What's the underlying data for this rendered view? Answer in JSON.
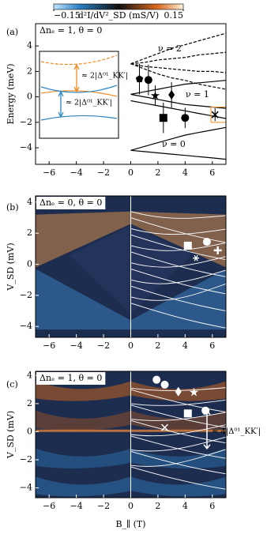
{
  "colorbar": {
    "clim": [
      -0.15,
      0.15
    ],
    "ticks": [
      {
        "value": -0.15,
        "label": "−0.15"
      },
      0.15
    ],
    "label": "d²I/dV²_SD (mS/V)"
  },
  "chart_data": [
    {
      "type": "line",
      "panel_label": "(a)",
      "annotation": "Δnₑ = 1, θ = 0",
      "y_label": "Energy (meV)",
      "xlim": [
        -7,
        7
      ],
      "ylim": [
        -5.3,
        5.75
      ],
      "xticks": [
        {
          "value": -6,
          "label": "−6"
        },
        {
          "value": -4,
          "label": "−4"
        },
        {
          "value": -2,
          "label": "−2"
        },
        0,
        2,
        4,
        6
      ],
      "yticks": [
        {
          "value": -4,
          "label": "−4"
        },
        {
          "value": -2,
          "label": "−2"
        },
        0,
        2,
        4
      ],
      "level_labels": [
        "ν = 2",
        "ν = 1",
        "ν = 0"
      ],
      "inset_labels": [
        "≈ 2|Δ⁰¹_KK′|",
        "≈ 2|Δ⁰¹_KK′|"
      ],
      "x": [
        0,
        1,
        2,
        3,
        4,
        5,
        6,
        7
      ],
      "series": [
        {
          "color": "#000000",
          "dashed": true,
          "values": [
            2.6,
            3.0,
            3.4,
            3.8,
            4.1,
            4.4,
            4.7,
            5.0
          ]
        },
        {
          "color": "#000000",
          "dashed": true,
          "values": [
            2.6,
            2.7,
            2.9,
            3.0,
            3.1,
            3.3,
            3.4,
            3.5
          ]
        },
        {
          "color": "#000000",
          "dashed": true,
          "values": [
            2.6,
            2.4,
            2.3,
            2.2,
            2.1,
            2.0,
            2.0,
            1.9
          ]
        },
        {
          "color": "#000000",
          "dashed": true,
          "values": [
            2.6,
            2.2,
            1.8,
            1.5,
            1.3,
            1.0,
            0.8,
            0.6
          ]
        },
        {
          "color": "#000000",
          "dashed": false,
          "values": [
            0.2,
            0.4,
            0.6,
            0.8,
            1.0,
            1.1,
            1.2,
            1.3
          ]
        },
        {
          "color": "#000000",
          "dashed": false,
          "values": [
            0.2,
            0.0,
            -0.2,
            -0.4,
            -0.6,
            -0.7,
            -0.8,
            -0.9
          ]
        },
        {
          "color": "#000000",
          "dashed": false,
          "values": [
            -0.3,
            -0.5,
            -0.7,
            -0.9,
            -1.1,
            -1.3,
            -1.5,
            -1.7
          ]
        },
        {
          "color": "#000000",
          "dashed": false,
          "values": [
            -4.2,
            -3.9,
            -3.6,
            -3.3,
            -3.0,
            -2.8,
            -2.6,
            -2.4
          ]
        },
        {
          "color": "#000000",
          "dashed": false,
          "values": [
            -4.2,
            -4.3,
            -4.4,
            -4.5,
            -4.6,
            -4.7,
            -4.8,
            -4.9
          ]
        }
      ],
      "points": {
        "color": "#000000",
        "markers": [
          "pentagon",
          "circle",
          "star",
          "diamond",
          "square",
          "circle",
          "cross"
        ],
        "x": [
          0.64,
          1.3,
          1.8,
          3.0,
          2.4,
          4.0,
          6.2
        ],
        "y": [
          1.4,
          1.33,
          0.1,
          0.16,
          -1.65,
          -1.65,
          -1.4
        ],
        "error": [
          1.2,
          1.2,
          0.8,
          1.0,
          1.2,
          0.8,
          0.5
        ]
      }
    },
    {
      "type": "heatmap",
      "panel_label": "(b)",
      "annotation": "Δnₑ = 0, θ = 0",
      "y_label": "V_SD (mV)",
      "xlim": [
        -7,
        7
      ],
      "ylim": [
        -4.7,
        4.4
      ],
      "xticks": [
        {
          "value": -6,
          "label": "−6"
        },
        {
          "value": -4,
          "label": "−4"
        },
        {
          "value": -2,
          "label": "−2"
        },
        0,
        2,
        4,
        6
      ],
      "yticks": [
        {
          "value": -4,
          "label": "−4"
        },
        {
          "value": -2,
          "label": "−2"
        },
        0,
        2,
        4
      ],
      "points": {
        "color": "#ffffff",
        "markers": [
          "square",
          "circle",
          "plus",
          "asterisk"
        ],
        "x": [
          4.2,
          5.6,
          6.4,
          4.8
        ],
        "y": [
          1.2,
          1.45,
          0.9,
          0.4
        ]
      }
    },
    {
      "type": "heatmap",
      "panel_label": "(c)",
      "annotation": "Δnₑ = 1, θ = 0",
      "y_label": "V_SD (mV)",
      "x_label": "B_∥ (T)",
      "gap_label": "≈ 4|Δ⁰¹_KK′|",
      "xlim": [
        -7,
        7
      ],
      "ylim": [
        -4.7,
        4.3
      ],
      "xticks": [
        {
          "value": -6,
          "label": "−6"
        },
        {
          "value": -4,
          "label": "−4"
        },
        {
          "value": -2,
          "label": "−2"
        },
        0,
        2,
        4,
        6
      ],
      "yticks": [
        {
          "value": -4,
          "label": "−4"
        },
        {
          "value": -2,
          "label": "−2"
        },
        0,
        2,
        4
      ],
      "points": {
        "color": "#ffffff",
        "markers": [
          "circle",
          "circle",
          "diamond",
          "star",
          "square",
          "circle",
          "cross"
        ],
        "x": [
          1.9,
          2.5,
          3.5,
          4.65,
          4.2,
          5.5,
          2.5
        ],
        "y": [
          3.7,
          3.35,
          2.85,
          2.8,
          1.3,
          1.5,
          0.3
        ]
      }
    }
  ]
}
